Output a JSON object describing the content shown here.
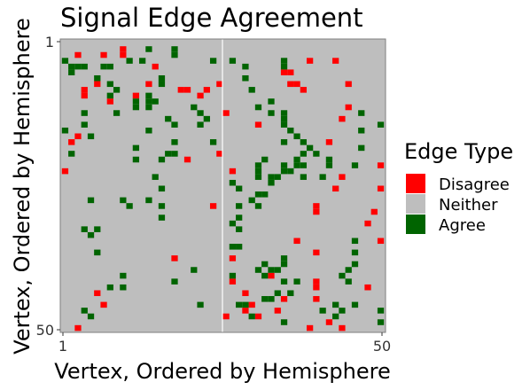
{
  "chart_data": {
    "type": "heatmap",
    "title": "Signal Edge Agreement",
    "xlabel": "Vertex, Ordered by Hemisphere",
    "ylabel": "Vertex, Ordered by Hemisphere",
    "x_ticks": [
      "1",
      "50"
    ],
    "y_ticks": [
      "1",
      "50"
    ],
    "n_vertices": 50,
    "hemisphere_split_after": 25,
    "background_category": "Neither",
    "legend": {
      "title": "Edge Type",
      "position": "right",
      "items": [
        {
          "label": "Disagree",
          "color": "#ff0000"
        },
        {
          "label": "Neither",
          "color": "#bebebe"
        },
        {
          "label": "Agree",
          "color": "#006400"
        }
      ]
    },
    "colors": {
      "Disagree": "#ff0000",
      "Neither": "#bebebe",
      "Agree": "#006400"
    },
    "cells": {
      "Disagree": [
        [
          3,
          3
        ],
        [
          7,
          3
        ],
        [
          10,
          2
        ],
        [
          10,
          3
        ],
        [
          15,
          5
        ],
        [
          39,
          4
        ],
        [
          43,
          4
        ],
        [
          35,
          6
        ],
        [
          36,
          6
        ],
        [
          36,
          8
        ],
        [
          37,
          8
        ],
        [
          38,
          9
        ],
        [
          45,
          8
        ],
        [
          6,
          8
        ],
        [
          14,
          8
        ],
        [
          4,
          9
        ],
        [
          4,
          10
        ],
        [
          8,
          11
        ],
        [
          12,
          10
        ],
        [
          19,
          9
        ],
        [
          20,
          9
        ],
        [
          22,
          10
        ],
        [
          23,
          9
        ],
        [
          25,
          8
        ],
        [
          26,
          13
        ],
        [
          31,
          15
        ],
        [
          44,
          14
        ],
        [
          45,
          12
        ],
        [
          3,
          17
        ],
        [
          2,
          18
        ],
        [
          42,
          18
        ],
        [
          25,
          20
        ],
        [
          20,
          21
        ],
        [
          50,
          22
        ],
        [
          1,
          23
        ],
        [
          27,
          23
        ],
        [
          44,
          24
        ],
        [
          43,
          26
        ],
        [
          50,
          26
        ],
        [
          24,
          29
        ],
        [
          40,
          29
        ],
        [
          40,
          30
        ],
        [
          49,
          30
        ],
        [
          48,
          32
        ],
        [
          50,
          35
        ],
        [
          37,
          35
        ],
        [
          40,
          37
        ],
        [
          18,
          38
        ],
        [
          27,
          38
        ],
        [
          33,
          41
        ],
        [
          40,
          42
        ],
        [
          40,
          43
        ],
        [
          27,
          42
        ],
        [
          48,
          43
        ],
        [
          6,
          44
        ],
        [
          29,
          44
        ],
        [
          30,
          46
        ],
        [
          31,
          48
        ],
        [
          35,
          45
        ],
        [
          42,
          49
        ],
        [
          39,
          50
        ],
        [
          44,
          50
        ],
        [
          3,
          50
        ],
        [
          7,
          46
        ],
        [
          26,
          48
        ],
        [
          29,
          47
        ],
        [
          34,
          47
        ],
        [
          40,
          45
        ]
      ],
      "Agree": [
        [
          2,
          5
        ],
        [
          3,
          5
        ],
        [
          1,
          4
        ],
        [
          2,
          6
        ],
        [
          4,
          5
        ],
        [
          7,
          5
        ],
        [
          14,
          2
        ],
        [
          13,
          4
        ],
        [
          18,
          2
        ],
        [
          18,
          3
        ],
        [
          11,
          4
        ],
        [
          6,
          7
        ],
        [
          8,
          8
        ],
        [
          9,
          9
        ],
        [
          8,
          10
        ],
        [
          9,
          13
        ],
        [
          12,
          11
        ],
        [
          12,
          12
        ],
        [
          14,
          10
        ],
        [
          14,
          12
        ],
        [
          15,
          11
        ],
        [
          16,
          7
        ],
        [
          16,
          8
        ],
        [
          24,
          4
        ],
        [
          27,
          4
        ],
        [
          29,
          5
        ],
        [
          35,
          4
        ],
        [
          35,
          5
        ],
        [
          29,
          7
        ],
        [
          30,
          9
        ],
        [
          31,
          12
        ],
        [
          35,
          13
        ],
        [
          47,
          13
        ],
        [
          47,
          16
        ],
        [
          50,
          15
        ],
        [
          33,
          11
        ],
        [
          33,
          13
        ],
        [
          35,
          14
        ],
        [
          35,
          15
        ],
        [
          36,
          16
        ],
        [
          37,
          17
        ],
        [
          38,
          18
        ],
        [
          39,
          19
        ],
        [
          40,
          20
        ],
        [
          42,
          21
        ],
        [
          42,
          22
        ],
        [
          46,
          22
        ],
        [
          47,
          19
        ],
        [
          38,
          20
        ],
        [
          37,
          21
        ],
        [
          36,
          23
        ],
        [
          33,
          24
        ],
        [
          31,
          24
        ],
        [
          33,
          25
        ],
        [
          31,
          22
        ],
        [
          31,
          23
        ],
        [
          32,
          21
        ],
        [
          35,
          23
        ],
        [
          35,
          22
        ],
        [
          34,
          24
        ],
        [
          32,
          27
        ],
        [
          30,
          28
        ],
        [
          27,
          25
        ],
        [
          28,
          26
        ],
        [
          31,
          27
        ],
        [
          31,
          29
        ],
        [
          28,
          29
        ],
        [
          28,
          31
        ],
        [
          27,
          32
        ],
        [
          28,
          33
        ],
        [
          27,
          36
        ],
        [
          28,
          36
        ],
        [
          32,
          39
        ],
        [
          33,
          40
        ],
        [
          34,
          40
        ],
        [
          35,
          38
        ],
        [
          35,
          39
        ],
        [
          31,
          40
        ],
        [
          32,
          41
        ],
        [
          35,
          42
        ],
        [
          37,
          42
        ],
        [
          36,
          44
        ],
        [
          27,
          41
        ],
        [
          32,
          45
        ],
        [
          33,
          45
        ],
        [
          34,
          44
        ],
        [
          28,
          46
        ],
        [
          29,
          46
        ],
        [
          30,
          48
        ],
        [
          35,
          49
        ],
        [
          44,
          47
        ],
        [
          43,
          48
        ],
        [
          50,
          49
        ],
        [
          4,
          47
        ],
        [
          5,
          48
        ],
        [
          8,
          43
        ],
        [
          10,
          43
        ],
        [
          10,
          41
        ],
        [
          6,
          33
        ],
        [
          6,
          37
        ],
        [
          21,
          40
        ],
        [
          22,
          46
        ],
        [
          18,
          42
        ],
        [
          12,
          19
        ],
        [
          12,
          21
        ],
        [
          16,
          21
        ],
        [
          17,
          20
        ],
        [
          18,
          20
        ],
        [
          18,
          18
        ],
        [
          17,
          14
        ],
        [
          18,
          15
        ],
        [
          24,
          18
        ],
        [
          22,
          15
        ],
        [
          23,
          14
        ],
        [
          22,
          13
        ],
        [
          1,
          16
        ],
        [
          2,
          20
        ],
        [
          4,
          15
        ],
        [
          5,
          17
        ],
        [
          4,
          13
        ],
        [
          21,
          12
        ],
        [
          8,
          5
        ],
        [
          14,
          11
        ],
        [
          14,
          16
        ],
        [
          15,
          24
        ],
        [
          16,
          26
        ],
        [
          14,
          28
        ],
        [
          16,
          29
        ],
        [
          10,
          28
        ],
        [
          11,
          29
        ],
        [
          5,
          28
        ],
        [
          4,
          33
        ],
        [
          5,
          34
        ],
        [
          16,
          31
        ],
        [
          37,
          22
        ],
        [
          35,
          18
        ],
        [
          38,
          24
        ],
        [
          38,
          22
        ],
        [
          41,
          24
        ],
        [
          45,
          40
        ],
        [
          46,
          39
        ],
        [
          46,
          37
        ],
        [
          45,
          42
        ],
        [
          46,
          35
        ],
        [
          44,
          41
        ],
        [
          46,
          46
        ],
        [
          41,
          47
        ],
        [
          43,
          46
        ],
        [
          50,
          47
        ]
      ]
    }
  }
}
